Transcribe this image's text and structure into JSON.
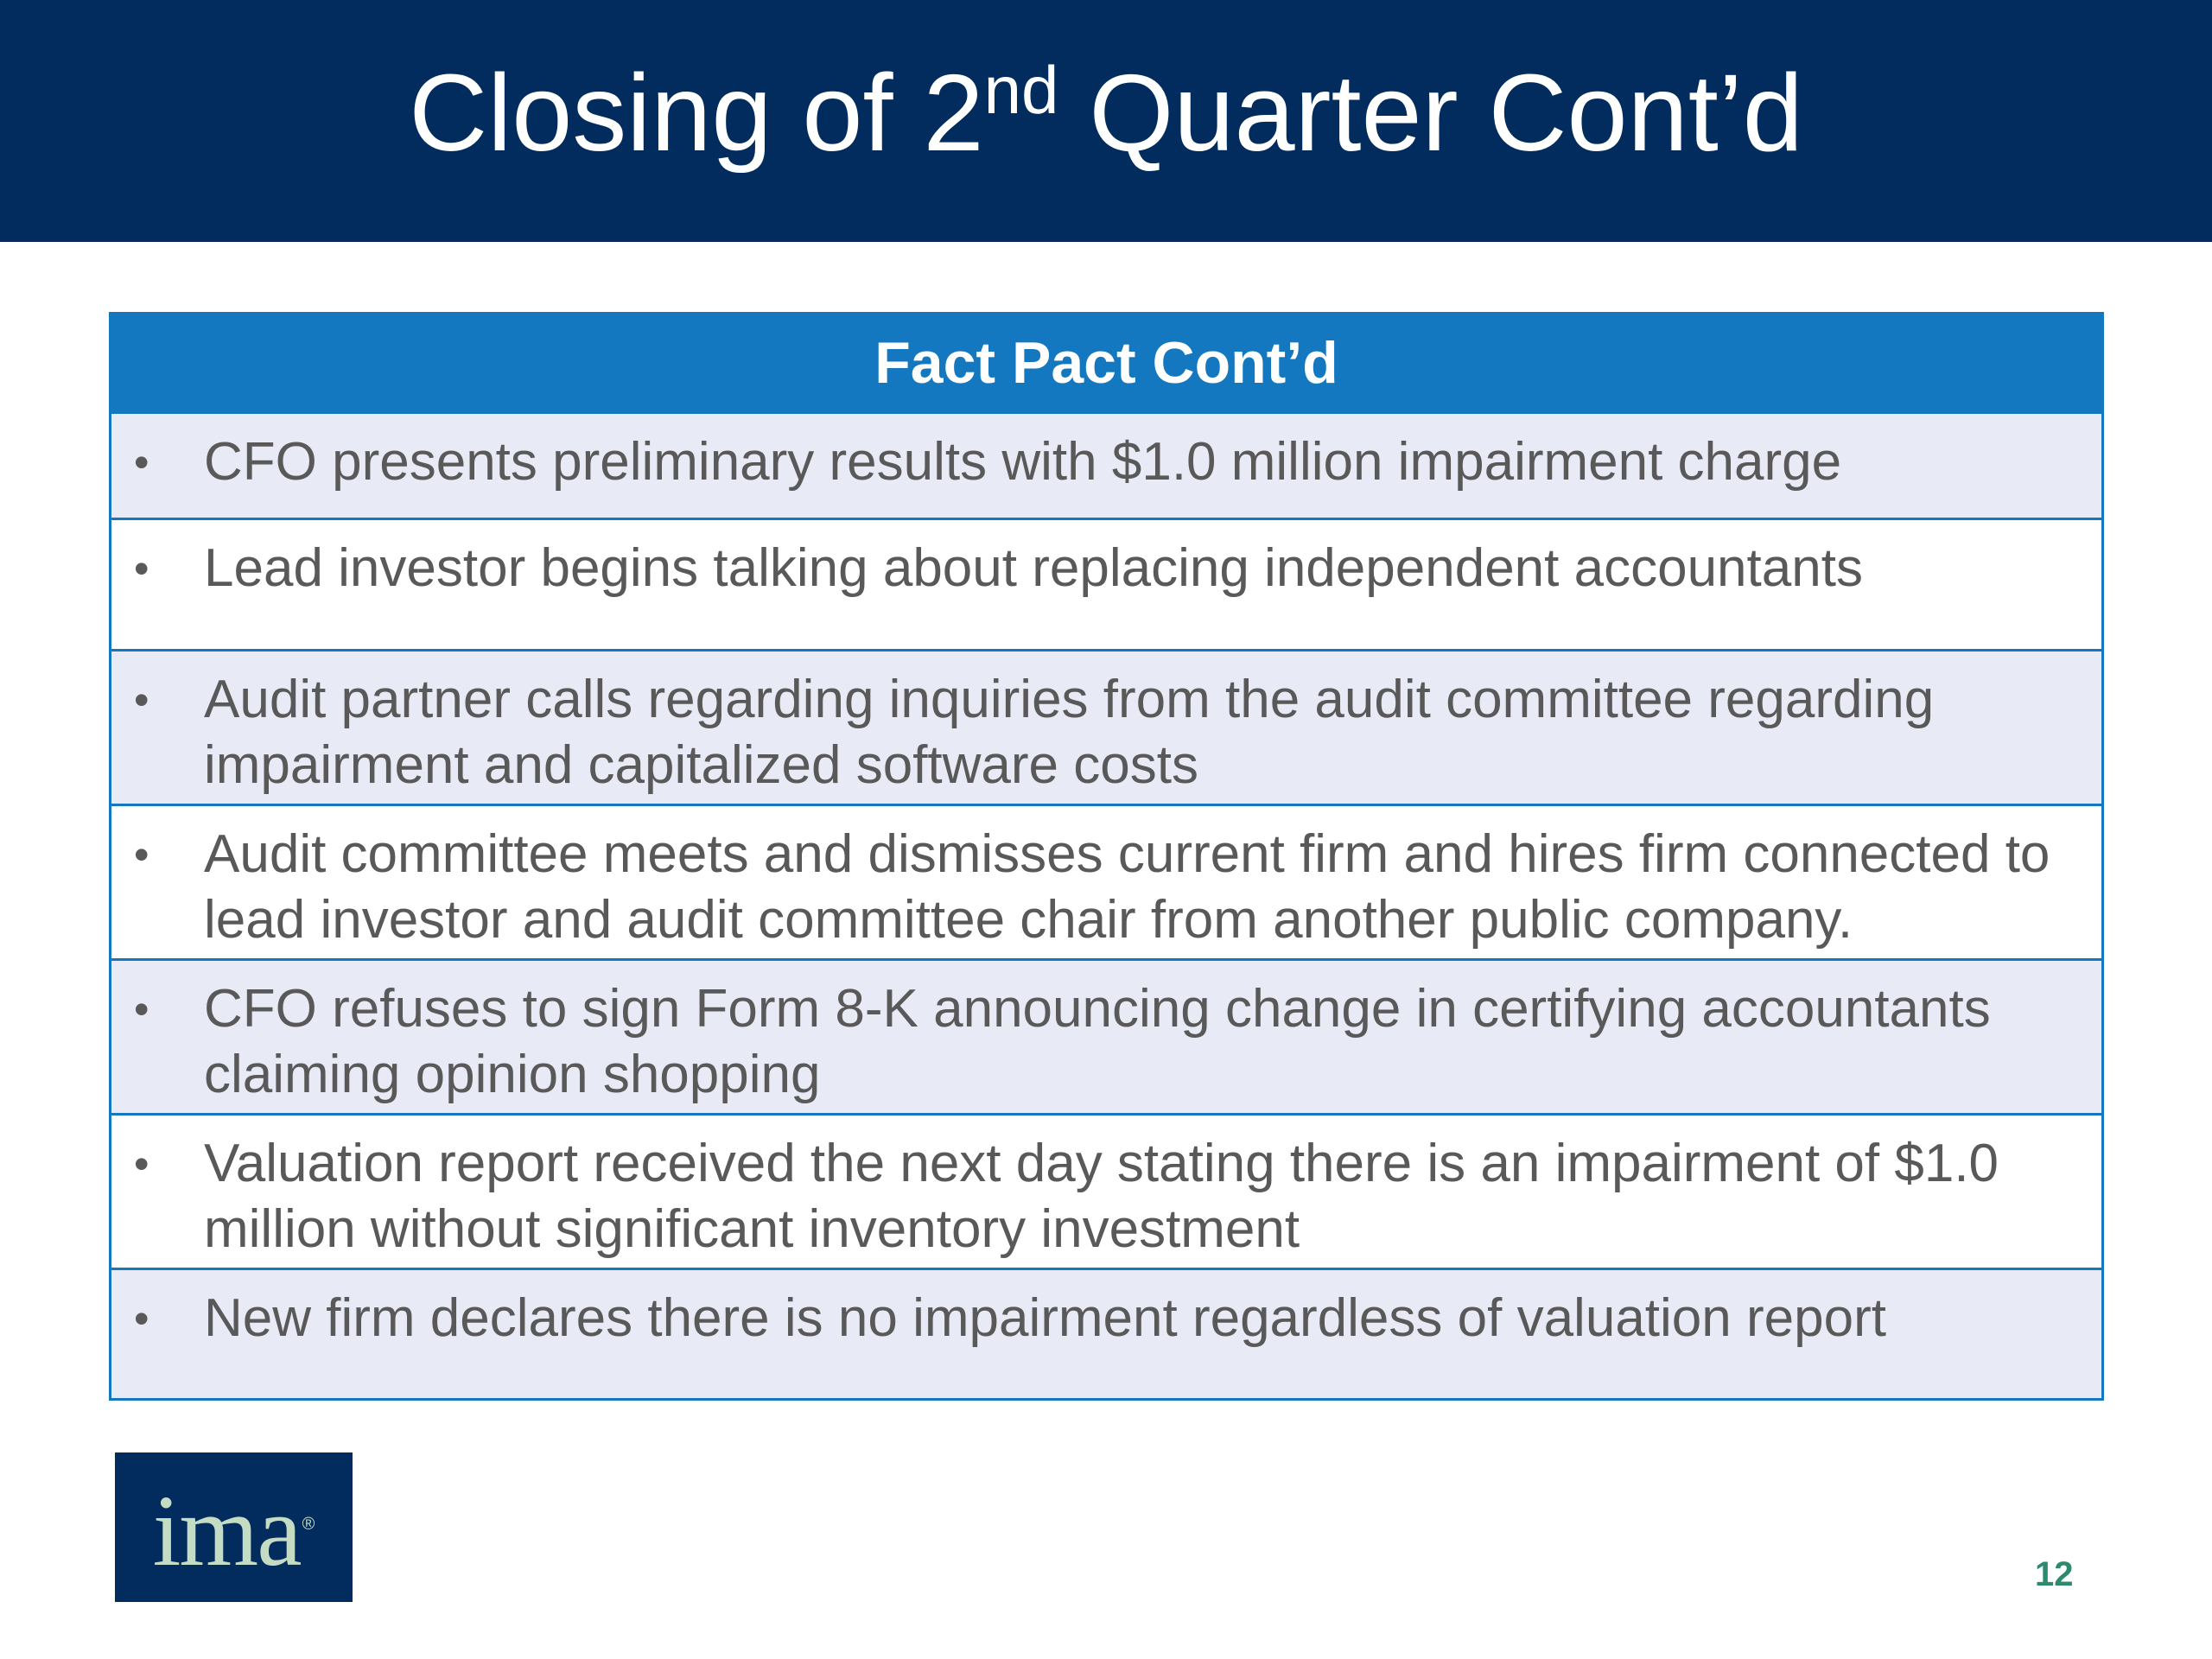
{
  "slide": {
    "title_main": "Closing of 2",
    "title_sup": "nd",
    "title_rest": " Quarter Cont’d",
    "page_number": "12"
  },
  "table": {
    "header": "Fact Pact Cont’d",
    "rows": [
      {
        "bullet": "•",
        "text": "CFO presents preliminary results with $1.0 million impairment charge"
      },
      {
        "bullet": "•",
        "text": "Lead investor begins talking about replacing independent accountants"
      },
      {
        "bullet": "•",
        "text": "Audit partner calls regarding inquiries from the audit committee regarding impairment and capitalized software costs"
      },
      {
        "bullet": "•",
        "text": "Audit committee meets and dismisses current firm and hires firm connected to lead investor and audit committee chair from another public company."
      },
      {
        "bullet": "•",
        "text": "CFO refuses to sign Form 8-K announcing change in certifying accountants claiming opinion shopping"
      },
      {
        "bullet": "•",
        "text": "Valuation report received the next day stating there is an impairment of $1.0 million without significant inventory investment"
      },
      {
        "bullet": "•",
        "text": "New firm declares there is no impairment regardless of valuation report"
      }
    ]
  },
  "logo": {
    "text": "ima",
    "registered_mark": "®"
  },
  "colors": {
    "title_bar": "#022c5e",
    "table_header": "#1378c0",
    "row_shade": "#e8eaf5",
    "body_text": "#595959",
    "page_number": "#2e8a6e",
    "logo_text": "#c4dcc4"
  }
}
